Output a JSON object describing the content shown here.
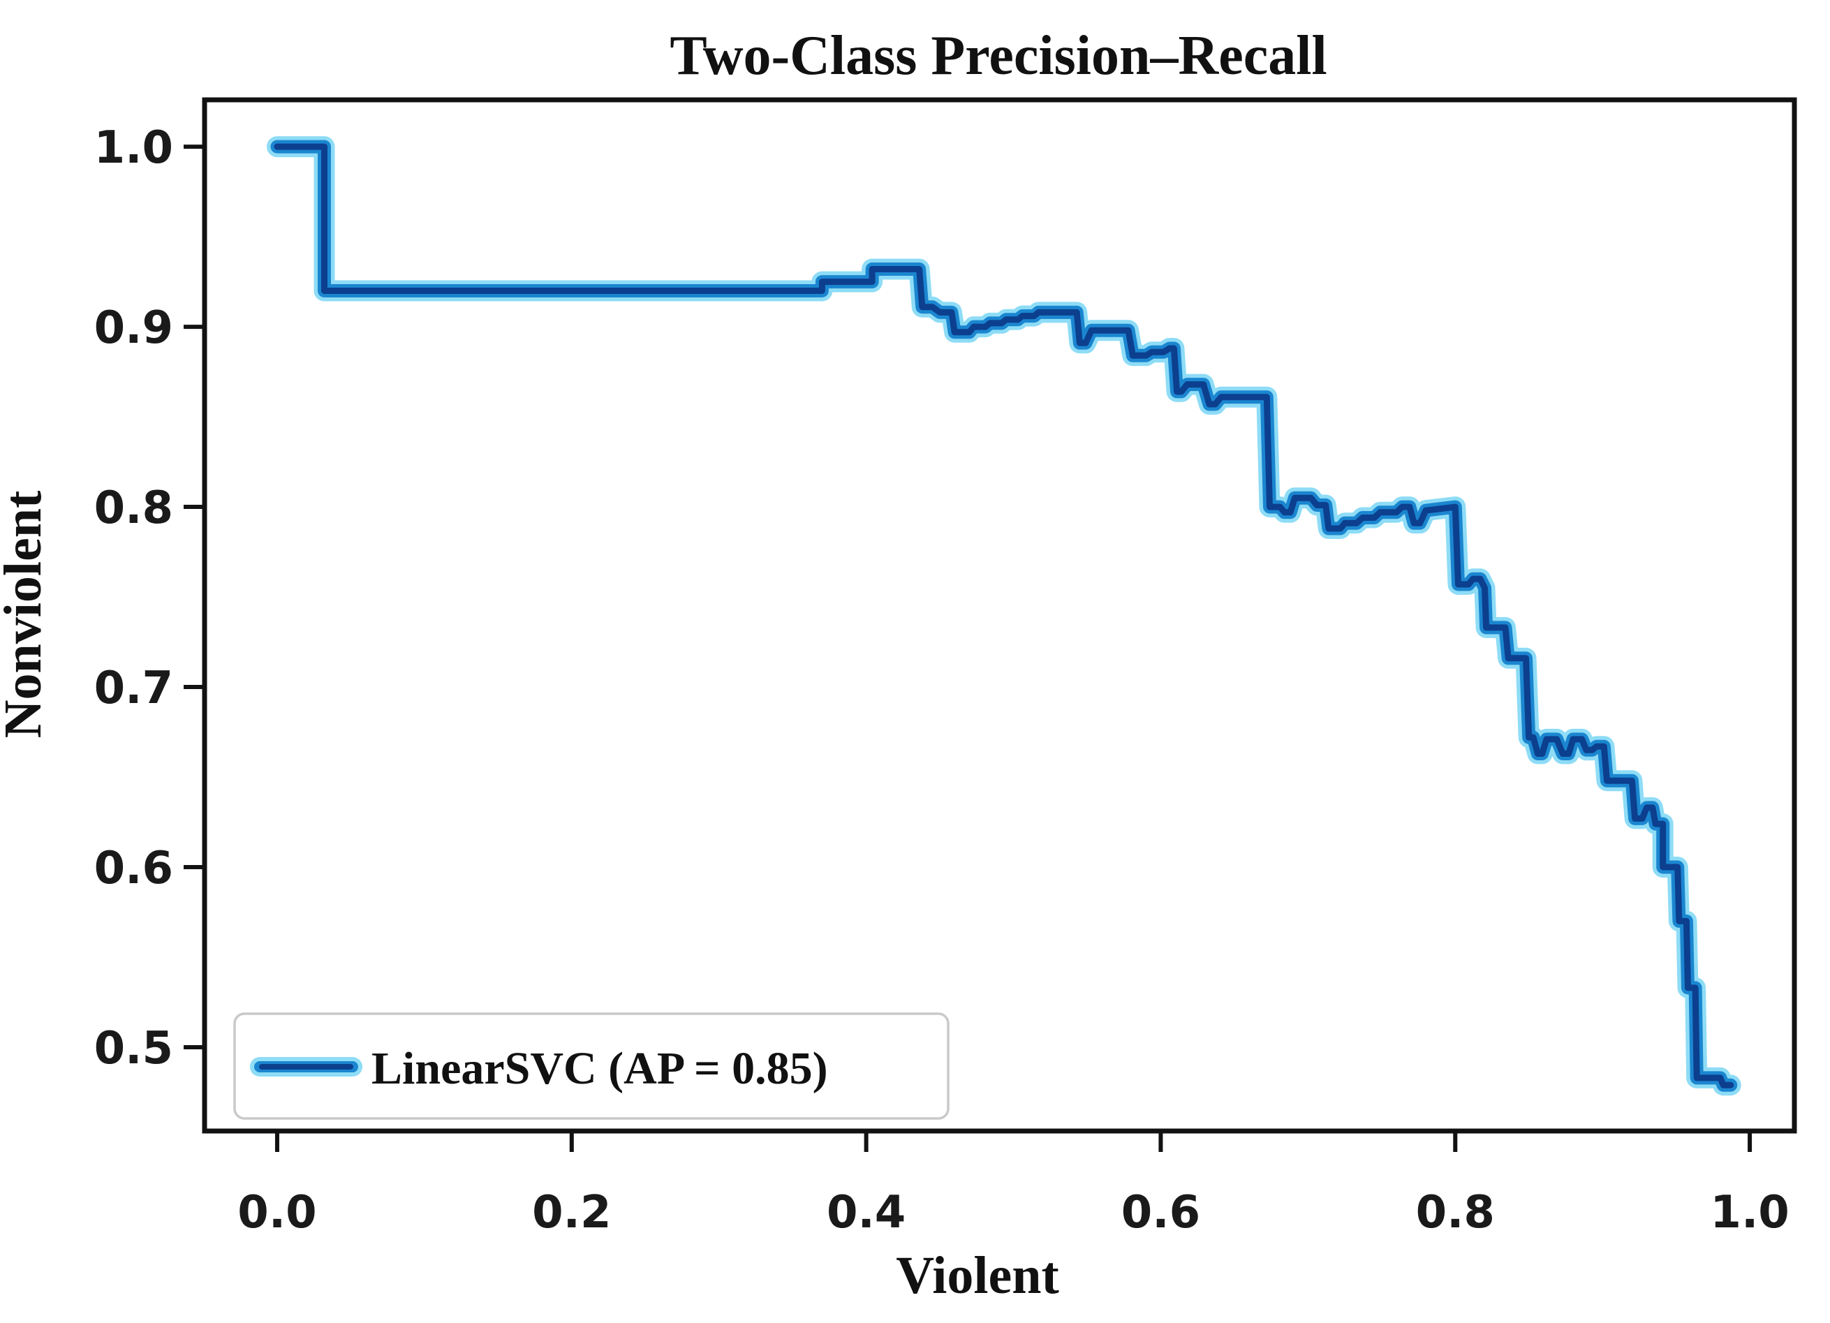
{
  "chart_data": {
    "type": "line",
    "title": "Two-Class Precision–Recall",
    "xlabel": "Violent",
    "ylabel": "Nonviolent",
    "grid": false,
    "legend_position": "lower left",
    "xlim": [
      -0.0493,
      1.0303
    ],
    "ylim": [
      0.4535,
      1.026
    ],
    "x_ticks": [
      {
        "v": 0.0,
        "label": "0.0"
      },
      {
        "v": 0.2,
        "label": "0.2"
      },
      {
        "v": 0.4,
        "label": "0.4"
      },
      {
        "v": 0.6,
        "label": "0.6"
      },
      {
        "v": 0.8,
        "label": "0.8"
      },
      {
        "v": 1.0,
        "label": "1.0"
      }
    ],
    "y_ticks": [
      {
        "v": 1.0,
        "label": "1.0"
      },
      {
        "v": 0.9,
        "label": "0.9"
      },
      {
        "v": 0.8,
        "label": "0.8"
      },
      {
        "v": 0.7,
        "label": "0.7"
      },
      {
        "v": 0.6,
        "label": "0.6"
      },
      {
        "v": 0.5,
        "label": "0.5"
      }
    ],
    "series": [
      {
        "name": "LinearSVC (AP = 0.85)",
        "average_precision": 0.85,
        "color_core": "#0c3f8e",
        "color_mid": "#1b86d0",
        "color_halo": "#8edcf6",
        "points": [
          [
            0.0,
            1.0
          ],
          [
            0.032,
            1.0
          ],
          [
            0.032,
            0.92
          ],
          [
            0.37,
            0.92
          ],
          [
            0.37,
            0.925
          ],
          [
            0.404,
            0.925
          ],
          [
            0.404,
            0.932
          ],
          [
            0.436,
            0.932
          ],
          [
            0.438,
            0.911
          ],
          [
            0.445,
            0.911
          ],
          [
            0.45,
            0.908
          ],
          [
            0.458,
            0.908
          ],
          [
            0.46,
            0.897
          ],
          [
            0.47,
            0.897
          ],
          [
            0.473,
            0.9
          ],
          [
            0.481,
            0.9
          ],
          [
            0.484,
            0.902
          ],
          [
            0.492,
            0.902
          ],
          [
            0.495,
            0.904
          ],
          [
            0.503,
            0.904
          ],
          [
            0.506,
            0.906
          ],
          [
            0.514,
            0.906
          ],
          [
            0.517,
            0.908
          ],
          [
            0.543,
            0.908
          ],
          [
            0.545,
            0.891
          ],
          [
            0.549,
            0.891
          ],
          [
            0.553,
            0.898
          ],
          [
            0.578,
            0.898
          ],
          [
            0.581,
            0.884
          ],
          [
            0.59,
            0.884
          ],
          [
            0.594,
            0.886
          ],
          [
            0.602,
            0.886
          ],
          [
            0.606,
            0.888
          ],
          [
            0.609,
            0.888
          ],
          [
            0.611,
            0.864
          ],
          [
            0.614,
            0.864
          ],
          [
            0.618,
            0.868
          ],
          [
            0.629,
            0.868
          ],
          [
            0.633,
            0.857
          ],
          [
            0.637,
            0.857
          ],
          [
            0.641,
            0.861
          ],
          [
            0.672,
            0.861
          ],
          [
            0.674,
            0.8
          ],
          [
            0.681,
            0.8
          ],
          [
            0.684,
            0.797
          ],
          [
            0.688,
            0.797
          ],
          [
            0.691,
            0.805
          ],
          [
            0.702,
            0.805
          ],
          [
            0.706,
            0.801
          ],
          [
            0.712,
            0.801
          ],
          [
            0.714,
            0.788
          ],
          [
            0.722,
            0.788
          ],
          [
            0.725,
            0.791
          ],
          [
            0.733,
            0.791
          ],
          [
            0.737,
            0.794
          ],
          [
            0.745,
            0.794
          ],
          [
            0.749,
            0.797
          ],
          [
            0.76,
            0.797
          ],
          [
            0.764,
            0.8
          ],
          [
            0.769,
            0.8
          ],
          [
            0.772,
            0.791
          ],
          [
            0.776,
            0.791
          ],
          [
            0.78,
            0.798
          ],
          [
            0.8,
            0.8
          ],
          [
            0.802,
            0.757
          ],
          [
            0.809,
            0.757
          ],
          [
            0.812,
            0.76
          ],
          [
            0.817,
            0.76
          ],
          [
            0.82,
            0.755
          ],
          [
            0.821,
            0.733
          ],
          [
            0.834,
            0.733
          ],
          [
            0.836,
            0.716
          ],
          [
            0.848,
            0.716
          ],
          [
            0.85,
            0.672
          ],
          [
            0.853,
            0.672
          ],
          [
            0.856,
            0.663
          ],
          [
            0.859,
            0.663
          ],
          [
            0.862,
            0.671
          ],
          [
            0.869,
            0.671
          ],
          [
            0.873,
            0.663
          ],
          [
            0.877,
            0.663
          ],
          [
            0.88,
            0.671
          ],
          [
            0.886,
            0.671
          ],
          [
            0.889,
            0.665
          ],
          [
            0.893,
            0.665
          ],
          [
            0.896,
            0.667
          ],
          [
            0.901,
            0.667
          ],
          [
            0.903,
            0.648
          ],
          [
            0.92,
            0.648
          ],
          [
            0.922,
            0.627
          ],
          [
            0.927,
            0.627
          ],
          [
            0.93,
            0.633
          ],
          [
            0.934,
            0.633
          ],
          [
            0.936,
            0.624
          ],
          [
            0.941,
            0.624
          ],
          [
            0.941,
            0.6
          ],
          [
            0.951,
            0.6
          ],
          [
            0.952,
            0.57
          ],
          [
            0.957,
            0.57
          ],
          [
            0.958,
            0.533
          ],
          [
            0.963,
            0.533
          ],
          [
            0.964,
            0.483
          ],
          [
            0.98,
            0.483
          ],
          [
            0.982,
            0.479
          ],
          [
            0.987,
            0.479
          ]
        ]
      }
    ]
  },
  "legend": {
    "label": "LinearSVC (AP = 0.85)"
  }
}
